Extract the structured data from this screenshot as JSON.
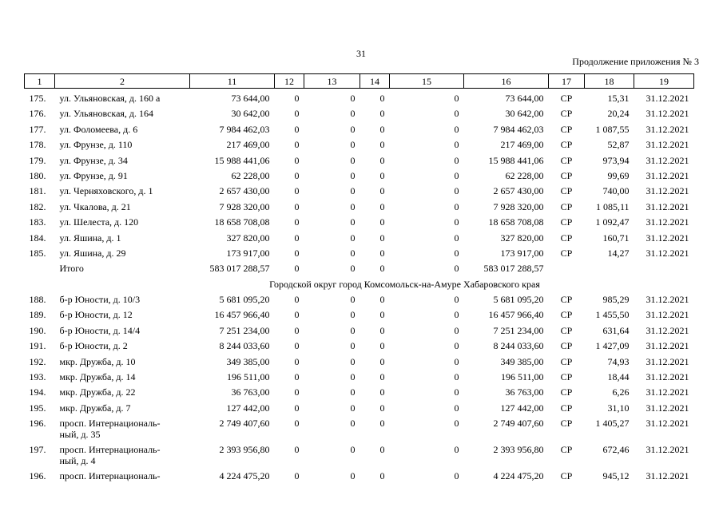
{
  "header": {
    "page_number": "31",
    "continuation": "Продолжение приложения № 3"
  },
  "table": {
    "columns": [
      "1",
      "2",
      "11",
      "12",
      "13",
      "14",
      "15",
      "16",
      "17",
      "18",
      "19"
    ],
    "rows": [
      [
        "175.",
        "ул. Ульяновская, д. 160 а",
        "73 644,00",
        "0",
        "0",
        "0",
        "0",
        "73 644,00",
        "СР",
        "15,31",
        "31.12.2021"
      ],
      [
        "176.",
        "ул. Ульяновская, д. 164",
        "30 642,00",
        "0",
        "0",
        "0",
        "0",
        "30 642,00",
        "СР",
        "20,24",
        "31.12.2021"
      ],
      [
        "177.",
        "ул. Фоломеева, д. 6",
        "7 984 462,03",
        "0",
        "0",
        "0",
        "0",
        "7 984 462,03",
        "СР",
        "1 087,55",
        "31.12.2021"
      ],
      [
        "178.",
        "ул. Фрунзе, д. 110",
        "217 469,00",
        "0",
        "0",
        "0",
        "0",
        "217 469,00",
        "СР",
        "52,87",
        "31.12.2021"
      ],
      [
        "179.",
        "ул. Фрунзе, д. 34",
        "15 988 441,06",
        "0",
        "0",
        "0",
        "0",
        "15 988 441,06",
        "СР",
        "973,94",
        "31.12.2021"
      ],
      [
        "180.",
        "ул. Фрунзе, д. 91",
        "62 228,00",
        "0",
        "0",
        "0",
        "0",
        "62 228,00",
        "СР",
        "99,69",
        "31.12.2021"
      ],
      [
        "181.",
        "ул. Черняховского, д. 1",
        "2 657 430,00",
        "0",
        "0",
        "0",
        "0",
        "2 657 430,00",
        "СР",
        "740,00",
        "31.12.2021"
      ],
      [
        "182.",
        "ул. Чкалова, д. 21",
        "7 928 320,00",
        "0",
        "0",
        "0",
        "0",
        "7 928 320,00",
        "СР",
        "1 085,11",
        "31.12.2021"
      ],
      [
        "183.",
        "ул. Шелеста, д. 120",
        "18 658 708,08",
        "0",
        "0",
        "0",
        "0",
        "18 658 708,08",
        "СР",
        "1 092,47",
        "31.12.2021"
      ],
      [
        "184.",
        "ул. Яшина, д. 1",
        "327 820,00",
        "0",
        "0",
        "0",
        "0",
        "327 820,00",
        "СР",
        "160,71",
        "31.12.2021"
      ],
      [
        "185.",
        "ул. Яшина, д. 29",
        "173 917,00",
        "0",
        "0",
        "0",
        "0",
        "173 917,00",
        "СР",
        "14,27",
        "31.12.2021"
      ],
      [
        null,
        "Итого",
        "583 017 288,57",
        "0",
        "0",
        "0",
        "0",
        "583 017 288,57",
        null,
        null,
        null
      ],
      "Городской округ город Комсомольск-на-Амуре Хабаровского края",
      [
        "188.",
        "б-р Юности, д. 10/3",
        "5 681 095,20",
        "0",
        "0",
        "0",
        "0",
        "5 681 095,20",
        "СР",
        "985,29",
        "31.12.2021"
      ],
      [
        "189.",
        "б-р Юности, д. 12",
        "16 457 966,40",
        "0",
        "0",
        "0",
        "0",
        "16 457 966,40",
        "СР",
        "1 455,50",
        "31.12.2021"
      ],
      [
        "190.",
        "б-р Юности, д. 14/4",
        "7 251 234,00",
        "0",
        "0",
        "0",
        "0",
        "7 251 234,00",
        "СР",
        "631,64",
        "31.12.2021"
      ],
      [
        "191.",
        "б-р Юности, д. 2",
        "8 244 033,60",
        "0",
        "0",
        "0",
        "0",
        "8 244 033,60",
        "СР",
        "1 427,09",
        "31.12.2021"
      ],
      [
        "192.",
        "мкр. Дружба, д. 10",
        "349 385,00",
        "0",
        "0",
        "0",
        "0",
        "349 385,00",
        "СР",
        "74,93",
        "31.12.2021"
      ],
      [
        "193.",
        "мкр. Дружба, д. 14",
        "196 511,00",
        "0",
        "0",
        "0",
        "0",
        "196 511,00",
        "СР",
        "18,44",
        "31.12.2021"
      ],
      [
        "194.",
        "мкр. Дружба, д. 22",
        "36 763,00",
        "0",
        "0",
        "0",
        "0",
        "36 763,00",
        "СР",
        "6,26",
        "31.12.2021"
      ],
      [
        "195.",
        "мкр. Дружба, д. 7",
        "127 442,00",
        "0",
        "0",
        "0",
        "0",
        "127 442,00",
        "СР",
        "31,10",
        "31.12.2021"
      ],
      [
        "196.",
        "просп. Интернациональ-\nный, д. 35",
        "2 749 407,60",
        "0",
        "0",
        "0",
        "0",
        "2 749 407,60",
        "СР",
        "1 405,27",
        "31.12.2021"
      ],
      [
        "197.",
        "просп. Интернациональ-\nный, д. 4",
        "2 393 956,80",
        "0",
        "0",
        "0",
        "0",
        "2 393 956,80",
        "СР",
        "672,46",
        "31.12.2021"
      ],
      [
        "196.",
        "просп. Интернациональ-",
        "4 224 475,20",
        "0",
        "0",
        "0",
        "0",
        "4 224 475,20",
        "СР",
        "945,12",
        "31.12.2021"
      ]
    ]
  }
}
